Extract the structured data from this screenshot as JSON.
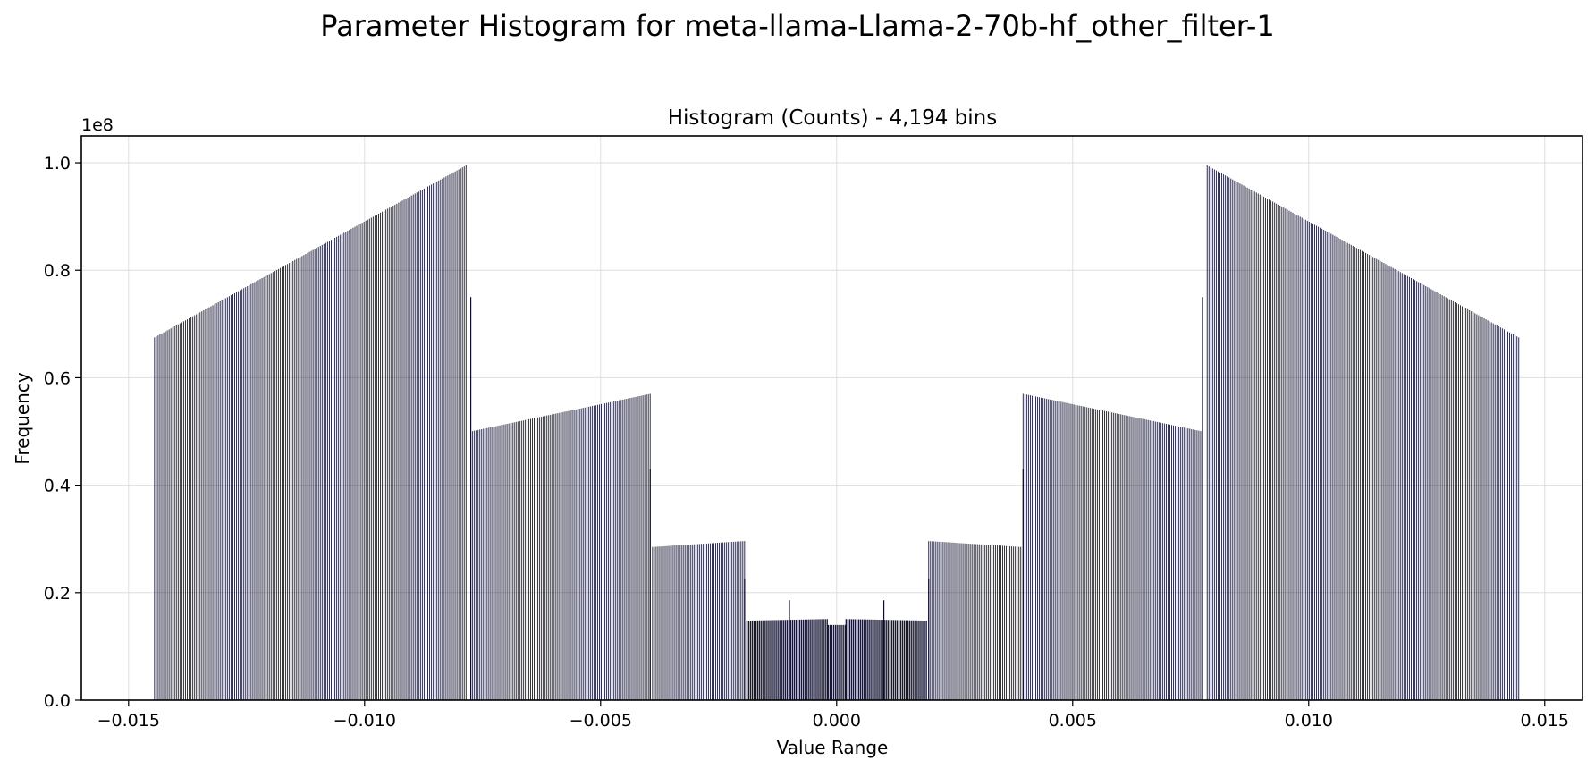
{
  "chart_data": {
    "type": "bar",
    "suptitle": "Parameter Histogram for meta-llama-Llama-2-70b-hf_other_filter-1",
    "title": "Histogram (Counts) - 4,194 bins",
    "xlabel": "Value Range",
    "ylabel": "Frequency",
    "y_offset_label": "1e8",
    "y_multiplier": 100000000,
    "xlim": [
      -0.016,
      0.0158
    ],
    "ylim": [
      0,
      1.05
    ],
    "xticks": [
      -0.015,
      -0.01,
      -0.005,
      0.0,
      0.005,
      0.01,
      0.015
    ],
    "xtick_labels": [
      "−0.015",
      "−0.010",
      "−0.005",
      "0.000",
      "0.005",
      "0.010",
      "0.015"
    ],
    "yticks": [
      0.0,
      0.2,
      0.4,
      0.6,
      0.8,
      1.0
    ],
    "ytick_labels": [
      "0.0",
      "0.2",
      "0.4",
      "0.6",
      "0.8",
      "1.0"
    ],
    "grid": true,
    "bar_color": "#0b0b2a",
    "segments": [
      {
        "x_start": -0.01445,
        "x_end": -0.00785,
        "y_start": 0.675,
        "y_end": 0.995
      },
      {
        "x_start": -0.00775,
        "x_end": -0.00395,
        "y_start": 0.5,
        "y_end": 0.57
      },
      {
        "x_start": -0.0039,
        "x_end": -0.00195,
        "y_start": 0.285,
        "y_end": 0.296
      },
      {
        "x_start": -0.0019,
        "x_end": -0.0002,
        "y_start": 0.148,
        "y_end": 0.151
      },
      {
        "x_start": -0.00018,
        "x_end": 0.00018,
        "y_start": 0.14,
        "y_end": 0.14
      },
      {
        "x_start": 0.0002,
        "x_end": 0.0019,
        "y_start": 0.151,
        "y_end": 0.148
      },
      {
        "x_start": 0.00195,
        "x_end": 0.0039,
        "y_start": 0.296,
        "y_end": 0.285
      },
      {
        "x_start": 0.00395,
        "x_end": 0.00775,
        "y_start": 0.57,
        "y_end": 0.5
      },
      {
        "x_start": 0.00785,
        "x_end": 0.01445,
        "y_start": 0.995,
        "y_end": 0.675
      }
    ],
    "spikes": [
      {
        "x": -0.00775,
        "y": 0.75
      },
      {
        "x": 0.00775,
        "y": 0.75
      },
      {
        "x": -0.00395,
        "y": 0.43
      },
      {
        "x": 0.00395,
        "y": 0.43
      },
      {
        "x": -0.00195,
        "y": 0.225
      },
      {
        "x": 0.00195,
        "y": 0.225
      },
      {
        "x": -0.001,
        "y": 0.186
      },
      {
        "x": 0.001,
        "y": 0.186
      }
    ]
  }
}
